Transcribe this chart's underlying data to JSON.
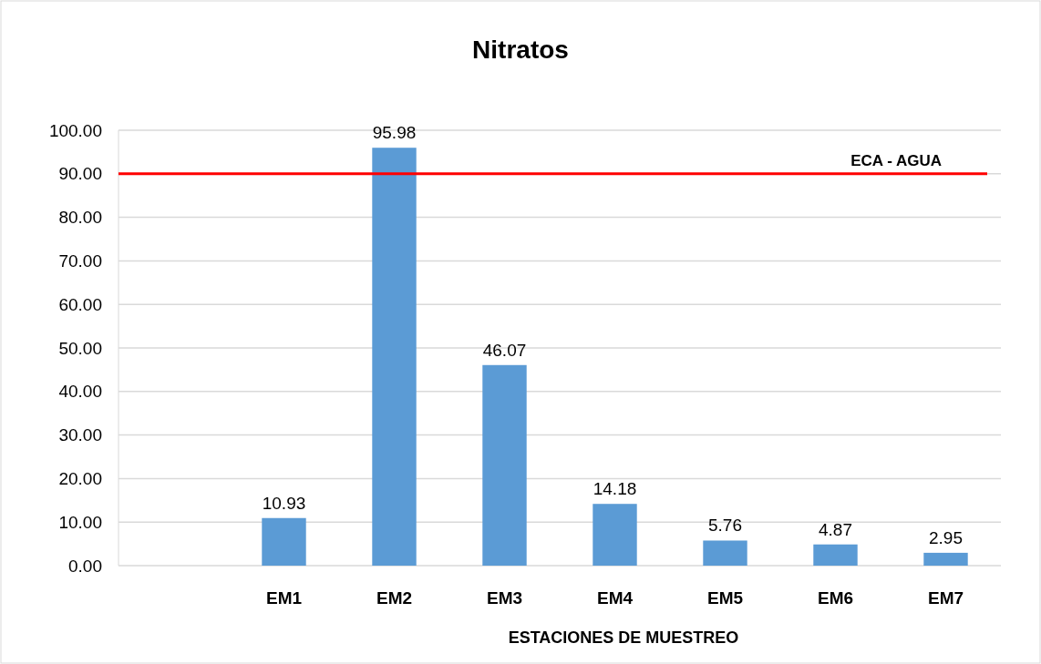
{
  "chart_data": {
    "type": "bar",
    "title": "Nitratos",
    "xlabel": "ESTACIONES DE MUESTREO",
    "categories": [
      null,
      "EM1",
      "EM2",
      "EM3",
      "EM4",
      "EM5",
      "EM6",
      "EM7"
    ],
    "values": [
      null,
      10.93,
      95.98,
      46.07,
      14.18,
      5.76,
      4.87,
      2.95
    ],
    "color": "#5b9bd5",
    "data_labels": true,
    "grid": "y",
    "ylim": [
      0,
      100
    ],
    "yticks": [
      {
        "value": 0,
        "label": "0.00"
      },
      {
        "value": 10,
        "label": "10.00"
      },
      {
        "value": 20,
        "label": "20.00"
      },
      {
        "value": 30,
        "label": "30.00"
      },
      {
        "value": 40,
        "label": "40.00"
      },
      {
        "value": 50,
        "label": "50.00"
      },
      {
        "value": 60,
        "label": "60.00"
      },
      {
        "value": 70,
        "label": "70.00"
      },
      {
        "value": 80,
        "label": "80.00"
      },
      {
        "value": 90,
        "label": "90.00"
      },
      {
        "value": 100,
        "label": "100.00"
      }
    ],
    "ref_lines": [
      {
        "axis": "y",
        "value": 90,
        "label": "ECA - AGUA",
        "color": "#ff0000"
      }
    ]
  }
}
